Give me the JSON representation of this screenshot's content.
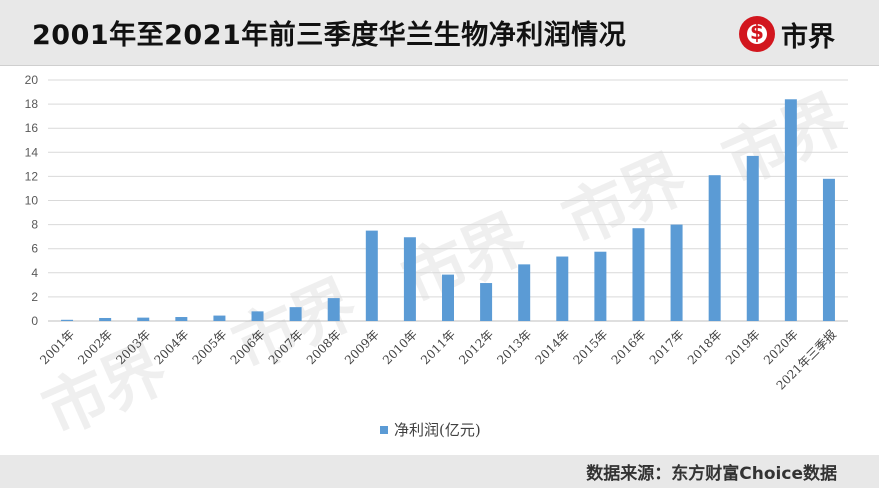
{
  "header": {
    "title": "2001年至2021年前三季度华兰生物净利润情况",
    "logo_text": "市界",
    "logo_icon": "dollar-circle-icon",
    "brand_color": "#d2161e"
  },
  "watermark_text": "市界",
  "footer": {
    "source": "数据来源：东方财富Choice数据"
  },
  "chart_data": {
    "type": "bar",
    "title": "2001年至2021年前三季度华兰生物净利润情况",
    "categories": [
      "2001年",
      "2002年",
      "2003年",
      "2004年",
      "2005年",
      "2006年",
      "2007年",
      "2008年",
      "2009年",
      "2010年",
      "2011年",
      "2012年",
      "2013年",
      "2014年",
      "2015年",
      "2016年",
      "2017年",
      "2018年",
      "2019年",
      "2020年",
      "2021年三季报"
    ],
    "series": [
      {
        "name": "净利润(亿元)",
        "color": "#5b9bd5",
        "values": [
          0.1,
          0.25,
          0.28,
          0.33,
          0.45,
          0.8,
          1.15,
          1.9,
          7.5,
          6.95,
          3.85,
          3.15,
          4.7,
          5.35,
          5.75,
          7.7,
          8.0,
          12.1,
          13.7,
          18.4,
          11.8
        ]
      }
    ],
    "xlabel": "",
    "ylabel": "",
    "ylim": [
      0,
      20
    ],
    "yticks": [
      "0",
      "2",
      "4",
      "6",
      "8",
      "10",
      "12",
      "14",
      "16",
      "18",
      "20"
    ],
    "grid": true,
    "legend_position": "bottom"
  }
}
